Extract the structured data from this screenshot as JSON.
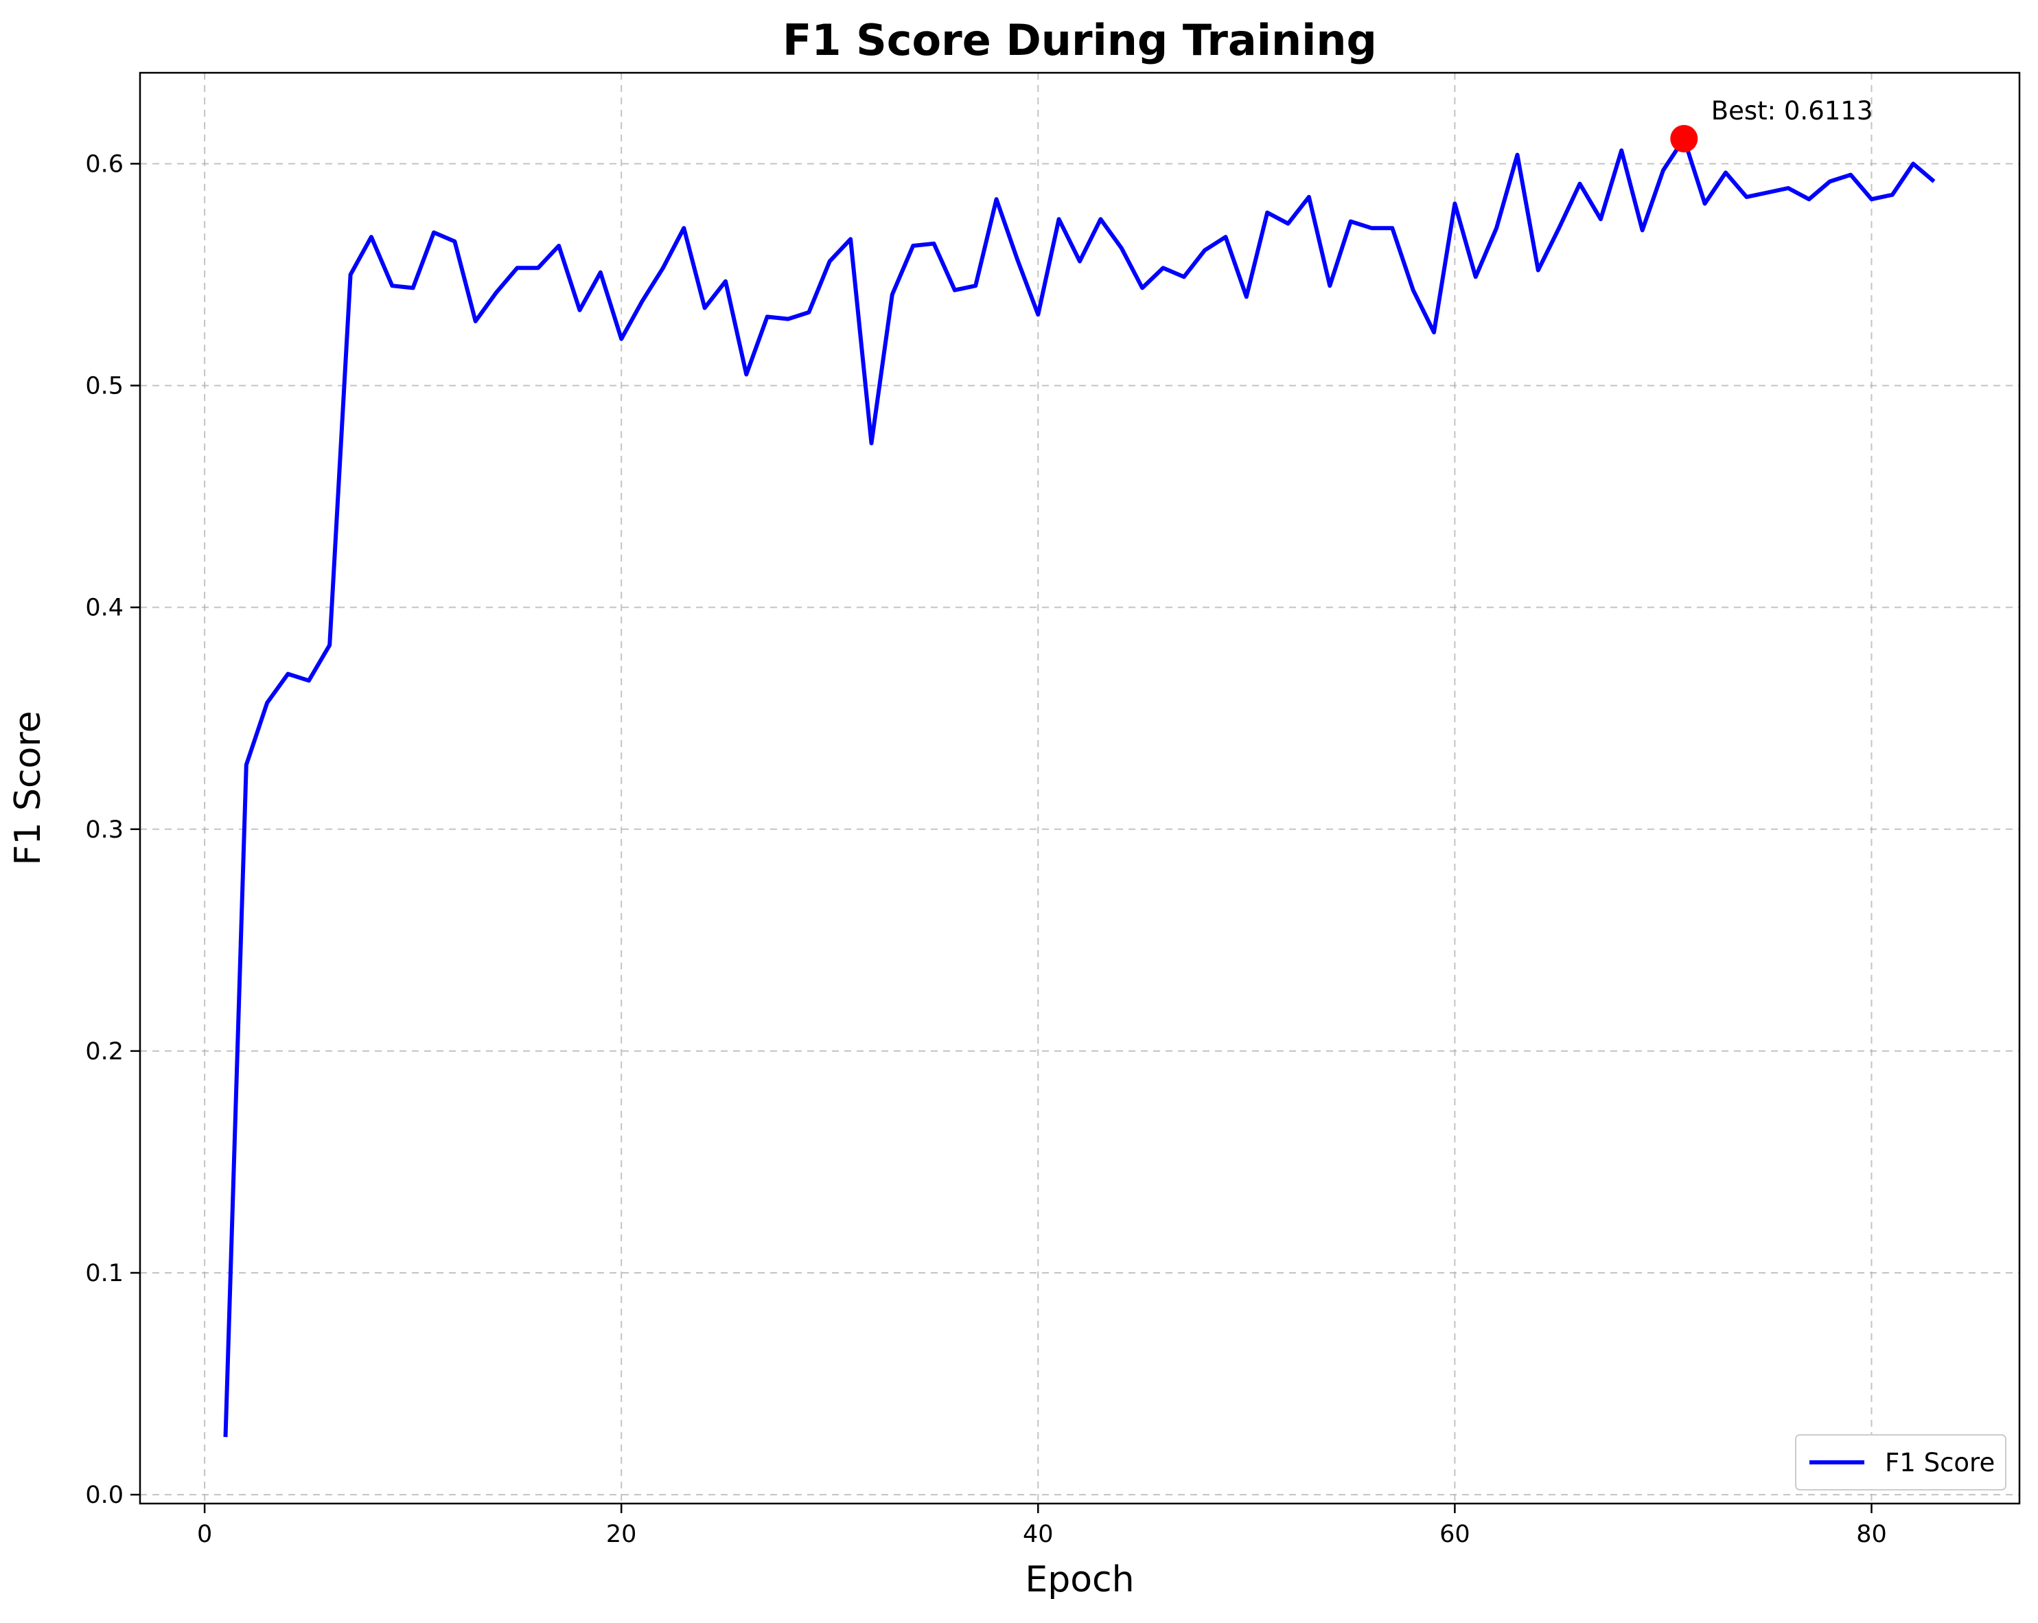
{
  "chart_data": {
    "type": "line",
    "title": "F1 Score During Training",
    "xlabel": "Epoch",
    "ylabel": "F1 Score",
    "xlim": [
      -3.1,
      87.1
    ],
    "ylim": [
      -0.004,
      0.641
    ],
    "xticks": [
      0,
      20,
      40,
      60,
      80
    ],
    "yticks": [
      0.0,
      0.1,
      0.2,
      0.3,
      0.4,
      0.5,
      0.6
    ],
    "ytick_labels": [
      "0.0",
      "0.1",
      "0.2",
      "0.3",
      "0.4",
      "0.5",
      "0.6"
    ],
    "grid": true,
    "legend_position": "lower right",
    "series": [
      {
        "name": "F1 Score",
        "color": "#0000ff",
        "x": [
          1,
          2,
          3,
          4,
          5,
          6,
          7,
          8,
          9,
          10,
          11,
          12,
          13,
          14,
          15,
          16,
          17,
          18,
          19,
          20,
          21,
          22,
          23,
          24,
          25,
          26,
          27,
          28,
          29,
          30,
          31,
          32,
          33,
          34,
          35,
          36,
          37,
          38,
          39,
          40,
          41,
          42,
          43,
          44,
          45,
          46,
          47,
          48,
          49,
          50,
          51,
          52,
          53,
          54,
          55,
          56,
          57,
          58,
          59,
          60,
          61,
          62,
          63,
          64,
          65,
          66,
          67,
          68,
          69,
          70,
          71,
          72,
          73,
          74,
          75,
          76,
          77,
          78,
          79,
          80,
          81,
          82,
          83
        ],
        "y": [
          0.026,
          0.329,
          0.357,
          0.37,
          0.367,
          0.383,
          0.55,
          0.567,
          0.545,
          0.544,
          0.569,
          0.565,
          0.529,
          0.542,
          0.553,
          0.553,
          0.563,
          0.534,
          0.551,
          0.521,
          0.538,
          0.553,
          0.571,
          0.535,
          0.547,
          0.505,
          0.531,
          0.53,
          0.533,
          0.556,
          0.566,
          0.474,
          0.541,
          0.563,
          0.564,
          0.543,
          0.545,
          0.584,
          0.557,
          0.532,
          0.575,
          0.556,
          0.575,
          0.562,
          0.544,
          0.553,
          0.549,
          0.561,
          0.567,
          0.54,
          0.578,
          0.573,
          0.585,
          0.545,
          0.574,
          0.571,
          0.571,
          0.543,
          0.524,
          0.582,
          0.549,
          0.571,
          0.604,
          0.552,
          0.571,
          0.591,
          0.575,
          0.606,
          0.57,
          0.597,
          0.6113,
          0.582,
          0.596,
          0.585,
          0.587,
          0.589,
          0.584,
          0.592,
          0.595,
          0.584,
          0.586,
          0.6,
          0.592
        ]
      }
    ],
    "best_marker": {
      "x": 71,
      "y": 0.6113,
      "color": "#ff0000"
    },
    "annotation": {
      "text": "Best: 0.6113",
      "x": 72.3,
      "y": 0.624
    }
  }
}
